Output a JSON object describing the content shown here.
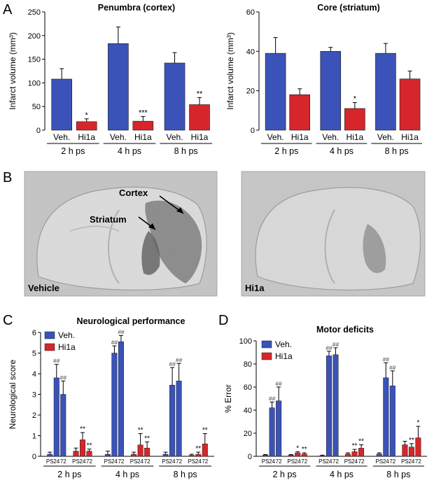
{
  "colors": {
    "veh": "#3b53b8",
    "hi1a": "#d6262b",
    "axis": "#000000",
    "err": "#000000"
  },
  "panel_labels": [
    "A",
    "B",
    "C",
    "D"
  ],
  "image_labels": {
    "vehicle": "Vehicle",
    "hi1a": "Hi1a",
    "cortex": "Cortex",
    "striatum": "Striatum"
  },
  "chart_data": [
    {
      "type": "bar",
      "id": "A-left",
      "title": "Penumbra (cortex)",
      "ylabel": "Infarct volume (mm³)",
      "ylim": [
        0,
        250
      ],
      "yticks": [
        0,
        50,
        100,
        150,
        200,
        250
      ],
      "groups": [
        "2 h ps",
        "4 h ps",
        "8 h ps"
      ],
      "categories": [
        "Veh.",
        "Hi1a"
      ],
      "values": [
        [
          108,
          18
        ],
        [
          183,
          19
        ],
        [
          142,
          54
        ]
      ],
      "errors": [
        [
          22,
          6
        ],
        [
          35,
          10
        ],
        [
          22,
          15
        ]
      ],
      "sig": [
        [
          "",
          "*"
        ],
        [
          "",
          "***"
        ],
        [
          "",
          "**"
        ]
      ]
    },
    {
      "type": "bar",
      "id": "A-right",
      "title": "Core (striatum)",
      "ylabel": "Infarct volume (mm³)",
      "ylim": [
        0,
        60
      ],
      "yticks": [
        0,
        20,
        40,
        60
      ],
      "groups": [
        "2 h ps",
        "4 h ps",
        "8 h ps"
      ],
      "categories": [
        "Veh.",
        "Hi1a"
      ],
      "values": [
        [
          39,
          18
        ],
        [
          40,
          11
        ],
        [
          39,
          26
        ]
      ],
      "errors": [
        [
          8,
          3
        ],
        [
          2,
          3
        ],
        [
          5,
          4
        ]
      ],
      "sig": [
        [
          "",
          ""
        ],
        [
          "",
          "*"
        ],
        [
          "",
          ""
        ]
      ]
    },
    {
      "type": "bar",
      "id": "C",
      "title": "Neurological performance",
      "ylabel": "Neurological score",
      "ylim": [
        0,
        6
      ],
      "yticks": [
        0,
        1,
        2,
        3,
        4,
        5,
        6
      ],
      "groups": [
        "2 h ps",
        "4 h ps",
        "8 h ps"
      ],
      "timepoints": [
        "PS",
        "24",
        "72"
      ],
      "legend": [
        "Veh.",
        "Hi1a"
      ],
      "series": [
        {
          "name": "Veh.",
          "values": [
            [
              0.1,
              3.8,
              3.0
            ],
            [
              0.1,
              5.0,
              5.55
            ],
            [
              0.1,
              3.45,
              3.65
            ]
          ],
          "errors": [
            [
              0.1,
              0.65,
              0.65
            ],
            [
              0.15,
              0.35,
              0.3
            ],
            [
              0.1,
              0.85,
              0.85
            ]
          ],
          "sig": [
            [
              "",
              "##",
              "##"
            ],
            [
              "",
              "##",
              "##"
            ],
            [
              "",
              "##",
              "##"
            ]
          ]
        },
        {
          "name": "Hi1a",
          "values": [
            [
              0.25,
              0.8,
              0.25
            ],
            [
              0.1,
              0.55,
              0.4
            ],
            [
              0.05,
              0.1,
              0.6
            ]
          ],
          "errors": [
            [
              0.15,
              0.35,
              0.1
            ],
            [
              0.1,
              0.55,
              0.3
            ],
            [
              0.05,
              0.1,
              0.5
            ]
          ],
          "sig": [
            [
              "",
              "**",
              "**"
            ],
            [
              "",
              "**",
              "**"
            ],
            [
              "",
              "**",
              "**"
            ]
          ]
        }
      ]
    },
    {
      "type": "bar",
      "id": "D",
      "title": "Motor deficits",
      "ylabel": "% Error",
      "ylim": [
        0,
        100
      ],
      "yticks": [
        0,
        20,
        40,
        60,
        80,
        100
      ],
      "groups": [
        "2 h ps",
        "4 h ps",
        "8 h ps"
      ],
      "timepoints": [
        "PS",
        "24",
        "72"
      ],
      "legend": [
        "Veh.",
        "Hi1a"
      ],
      "series": [
        {
          "name": "Veh.",
          "values": [
            [
              1,
              42,
              48
            ],
            [
              0.5,
              87,
              88
            ],
            [
              2,
              68,
              61
            ]
          ],
          "errors": [
            [
              0.5,
              5,
              12
            ],
            [
              0.5,
              4,
              6
            ],
            [
              1,
              13,
              13
            ]
          ],
          "sig": [
            [
              "",
              "##",
              "##"
            ],
            [
              "",
              "##",
              "##"
            ],
            [
              "",
              "##",
              "##"
            ]
          ]
        },
        {
          "name": "Hi1a",
          "values": [
            [
              1,
              3,
              2
            ],
            [
              2,
              4,
              7
            ],
            [
              10,
              8,
              16
            ]
          ],
          "errors": [
            [
              0.5,
              1,
              1
            ],
            [
              1,
              2,
              3
            ],
            [
              3,
              3,
              10
            ]
          ],
          "sig": [
            [
              "",
              "*",
              "**"
            ],
            [
              "",
              "**",
              "**"
            ],
            [
              "",
              "**",
              "*"
            ]
          ]
        }
      ]
    }
  ]
}
